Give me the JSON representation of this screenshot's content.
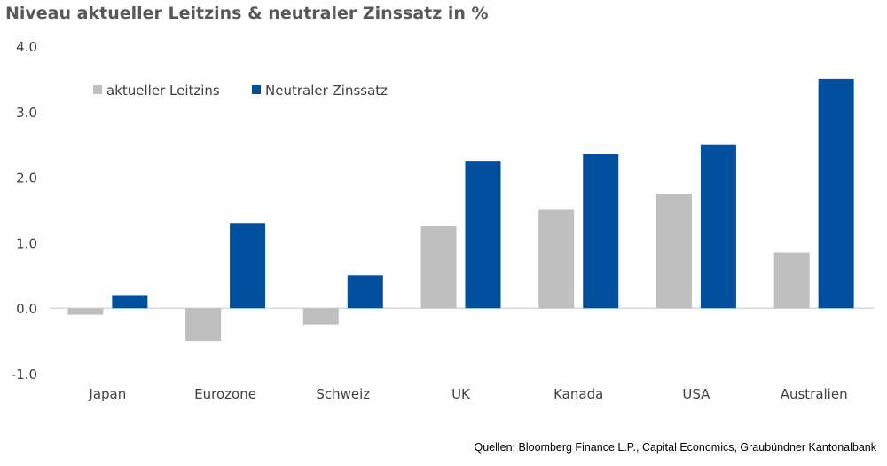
{
  "chart_data": {
    "type": "bar",
    "title": "Niveau aktueller Leitzins & neutraler Zinssatz in %",
    "xlabel": "",
    "ylabel": "",
    "ylim": [
      -1.0,
      4.0
    ],
    "yticks": [
      "4.0",
      "3.0",
      "2.0",
      "1.0",
      "0.0",
      "-1.0"
    ],
    "ytick_values": [
      4.0,
      3.0,
      2.0,
      1.0,
      0.0,
      -1.0
    ],
    "categories": [
      "Japan",
      "Eurozone",
      "Schweiz",
      "UK",
      "Kanada",
      "USA",
      "Australien"
    ],
    "series": [
      {
        "name": "aktueller Leitzins",
        "color": "#BFBFBF",
        "values": [
          -0.1,
          -0.5,
          -0.25,
          1.25,
          1.5,
          1.75,
          0.85
        ]
      },
      {
        "name": "Neutraler Zinssatz",
        "color": "#00509E",
        "values": [
          0.2,
          1.3,
          0.5,
          2.25,
          2.35,
          2.5,
          3.5
        ]
      }
    ],
    "legend_position": "top-left",
    "grid": false,
    "source": "Quellen: Bloomberg Finance L.P., Capital Economics, Graubündner Kantonalbank"
  }
}
